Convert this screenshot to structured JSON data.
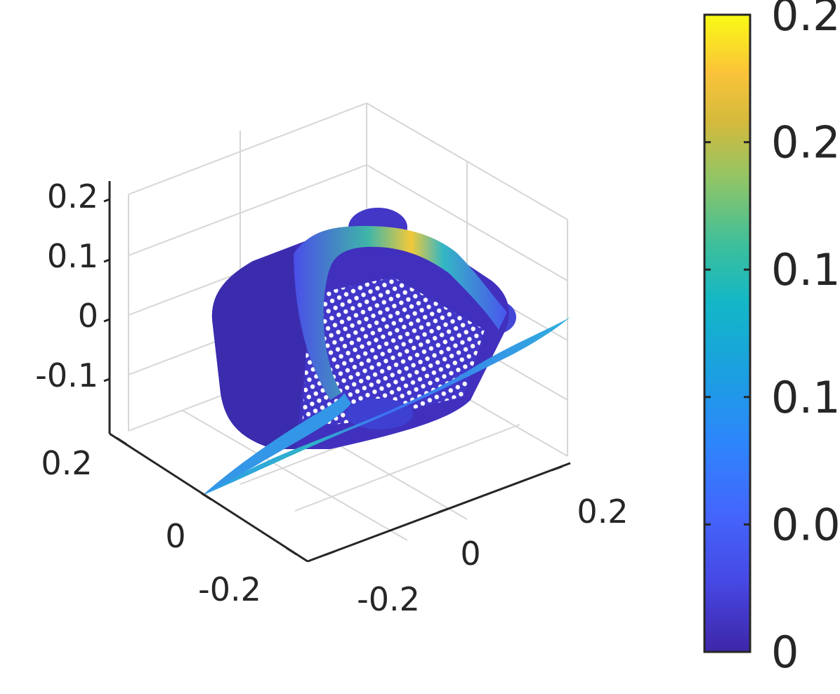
{
  "chart_data": {
    "type": "scatter",
    "title": "",
    "xlabel": "",
    "ylabel": "",
    "zlabel": "",
    "grid": true,
    "projection": "3d",
    "view": "isometric",
    "x_ticks": [
      "-0.2",
      "0",
      "0.2"
    ],
    "y_ticks": [
      "-0.2",
      "0",
      "0.2"
    ],
    "z_ticks": [
      "-0.1",
      "0",
      "0.1",
      "0.2"
    ],
    "xlim": [
      -0.3,
      0.3
    ],
    "ylim": [
      -0.3,
      0.3
    ],
    "zlim": [
      -0.2,
      0.22
    ],
    "colormap": "parula",
    "colorbar": {
      "ticks": [
        "0",
        "0.0",
        "0.1",
        "0.1",
        "0.2",
        "0.2"
      ],
      "tick_values": [
        0,
        0.05,
        0.1,
        0.15,
        0.2,
        0.25
      ],
      "range": [
        0,
        0.25
      ],
      "colors": [
        "#3e26a8",
        "#4748e4",
        "#2d86fb",
        "#13aede",
        "#26bfb1",
        "#7cc675",
        "#c6bf4a",
        "#fbbd3b",
        "#f8df30",
        "#f9fb15"
      ]
    },
    "point_cloud": {
      "description_ok": false,
      "object": "grasped object point cloud with overlaid cloth surface",
      "color_value_range": [
        0,
        0.25
      ]
    }
  }
}
